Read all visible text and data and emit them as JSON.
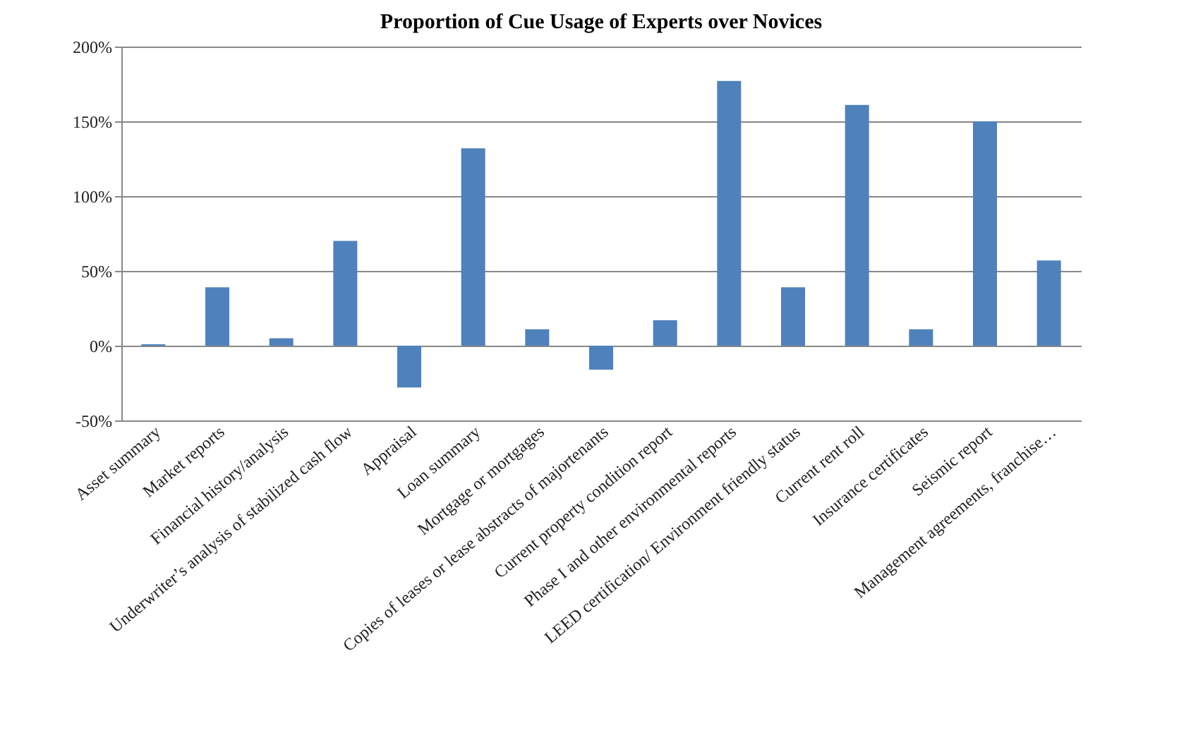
{
  "chart_data": {
    "type": "bar",
    "title": "Proportion of Cue Usage of Experts over Novices",
    "categories": [
      "Asset summary",
      "Market reports",
      "Financial history/analysis",
      "Underwriter’s analysis of stabilized cash flow",
      "Appraisal",
      "Loan summary",
      "Mortgage or mortgages",
      "Copies of leases or lease abstracts of majortenants",
      "Current property condition report",
      "Phase I and other environmental reports",
      "LEED certification/ Environment friendly status",
      "Current rent roll",
      "Insurance certificates",
      "Seismic report",
      "Management agreements, franchise…"
    ],
    "values": [
      1,
      39,
      5,
      70,
      -28,
      132,
      11,
      -16,
      17,
      177,
      39,
      161,
      11,
      150,
      57
    ],
    "color": "#4f81bd",
    "ylim": [
      -50,
      200
    ],
    "yticks": [
      {
        "value": -50,
        "label": "-50%"
      },
      {
        "value": 0,
        "label": "0%"
      },
      {
        "value": 50,
        "label": "50%"
      },
      {
        "value": 100,
        "label": "100%"
      },
      {
        "value": 150,
        "label": "150%"
      },
      {
        "value": 200,
        "label": "200%"
      }
    ],
    "grid": "y"
  }
}
